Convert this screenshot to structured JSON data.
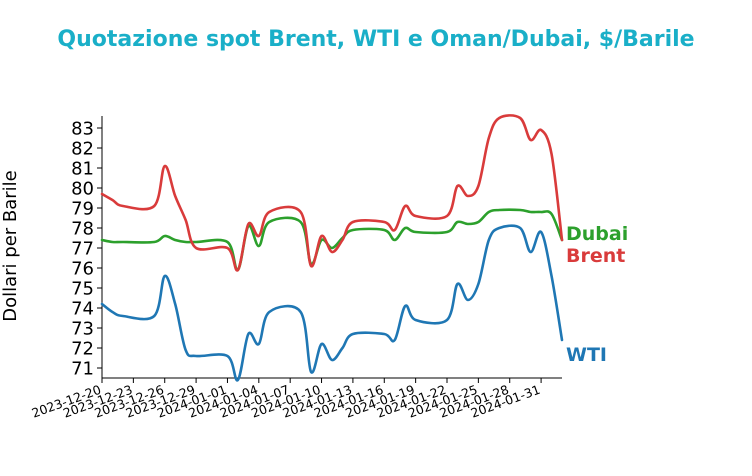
{
  "colors": {
    "title": "#1aafc8",
    "Brent": "#d93b3b",
    "Dubai": "#2ca02c",
    "WTI": "#1f77b4"
  },
  "chart_data": {
    "type": "line",
    "title": "Quotazione spot Brent, WTI e Oman/Dubai, $/Barile",
    "xlabel": "",
    "ylabel": "Dollari per Barile",
    "ylim": [
      70.5,
      83.6
    ],
    "yticks": [
      71,
      72,
      73,
      74,
      75,
      76,
      77,
      78,
      79,
      80,
      81,
      82,
      83
    ],
    "xlim": [
      "2023-12-20",
      "2024-02-02"
    ],
    "xticks": [
      "2023-12-20",
      "2023-12-23",
      "2023-12-26",
      "2023-12-29",
      "2024-01-01",
      "2024-01-04",
      "2024-01-07",
      "2024-01-10",
      "2024-01-13",
      "2024-01-16",
      "2024-01-19",
      "2024-01-22",
      "2024-01-25",
      "2024-01-28",
      "2024-01-31"
    ],
    "grid": false,
    "legend": "inline labels at right end of lines",
    "series": [
      {
        "name": "Dubai",
        "points": [
          [
            "2023-12-20",
            77.4
          ],
          [
            "2023-12-21",
            77.3
          ],
          [
            "2023-12-22",
            77.3
          ],
          [
            "2023-12-25",
            77.3
          ],
          [
            "2023-12-26",
            77.6
          ],
          [
            "2023-12-27",
            77.4
          ],
          [
            "2023-12-28",
            77.3
          ],
          [
            "2023-12-29",
            77.3
          ],
          [
            "2024-01-01",
            77.3
          ],
          [
            "2024-01-02",
            75.9
          ],
          [
            "2024-01-03",
            78.1
          ],
          [
            "2024-01-04",
            77.1
          ],
          [
            "2024-01-05",
            78.3
          ],
          [
            "2024-01-08",
            78.3
          ],
          [
            "2024-01-09",
            76.2
          ],
          [
            "2024-01-10",
            77.4
          ],
          [
            "2024-01-11",
            77.0
          ],
          [
            "2024-01-12",
            77.5
          ],
          [
            "2024-01-13",
            77.9
          ],
          [
            "2024-01-16",
            77.9
          ],
          [
            "2024-01-17",
            77.4
          ],
          [
            "2024-01-18",
            78.0
          ],
          [
            "2024-01-19",
            77.8
          ],
          [
            "2024-01-22",
            77.8
          ],
          [
            "2024-01-23",
            78.3
          ],
          [
            "2024-01-24",
            78.2
          ],
          [
            "2024-01-25",
            78.3
          ],
          [
            "2024-01-26",
            78.8
          ],
          [
            "2024-01-27",
            78.9
          ],
          [
            "2024-01-29",
            78.9
          ],
          [
            "2024-01-30",
            78.8
          ],
          [
            "2024-01-31",
            78.8
          ],
          [
            "2024-02-01",
            78.7
          ],
          [
            "2024-02-02",
            77.4
          ]
        ]
      },
      {
        "name": "Brent",
        "points": [
          [
            "2023-12-20",
            79.7
          ],
          [
            "2023-12-21",
            79.4
          ],
          [
            "2023-12-22",
            79.1
          ],
          [
            "2023-12-25",
            79.1
          ],
          [
            "2023-12-26",
            81.1
          ],
          [
            "2023-12-27",
            79.6
          ],
          [
            "2023-12-28",
            78.4
          ],
          [
            "2023-12-29",
            77.0
          ],
          [
            "2024-01-01",
            77.0
          ],
          [
            "2024-01-02",
            75.9
          ],
          [
            "2024-01-03",
            78.2
          ],
          [
            "2024-01-04",
            77.6
          ],
          [
            "2024-01-05",
            78.8
          ],
          [
            "2024-01-08",
            78.8
          ],
          [
            "2024-01-09",
            76.1
          ],
          [
            "2024-01-10",
            77.6
          ],
          [
            "2024-01-11",
            76.8
          ],
          [
            "2024-01-12",
            77.4
          ],
          [
            "2024-01-13",
            78.3
          ],
          [
            "2024-01-16",
            78.3
          ],
          [
            "2024-01-17",
            77.9
          ],
          [
            "2024-01-18",
            79.1
          ],
          [
            "2024-01-19",
            78.6
          ],
          [
            "2024-01-22",
            78.6
          ],
          [
            "2024-01-23",
            80.1
          ],
          [
            "2024-01-24",
            79.6
          ],
          [
            "2024-01-25",
            80.1
          ],
          [
            "2024-01-26",
            82.5
          ],
          [
            "2024-01-27",
            83.5
          ],
          [
            "2024-01-29",
            83.5
          ],
          [
            "2024-01-30",
            82.4
          ],
          [
            "2024-01-31",
            82.9
          ],
          [
            "2024-02-01",
            81.7
          ],
          [
            "2024-02-02",
            77.4
          ]
        ]
      },
      {
        "name": "WTI",
        "points": [
          [
            "2023-12-20",
            74.2
          ],
          [
            "2023-12-21",
            73.8
          ],
          [
            "2023-12-22",
            73.6
          ],
          [
            "2023-12-25",
            73.6
          ],
          [
            "2023-12-26",
            75.6
          ],
          [
            "2023-12-27",
            74.2
          ],
          [
            "2023-12-28",
            71.9
          ],
          [
            "2023-12-29",
            71.6
          ],
          [
            "2024-01-01",
            71.6
          ],
          [
            "2024-01-02",
            70.4
          ],
          [
            "2024-01-03",
            72.7
          ],
          [
            "2024-01-04",
            72.2
          ],
          [
            "2024-01-05",
            73.8
          ],
          [
            "2024-01-08",
            73.8
          ],
          [
            "2024-01-09",
            70.8
          ],
          [
            "2024-01-10",
            72.2
          ],
          [
            "2024-01-11",
            71.4
          ],
          [
            "2024-01-12",
            72.0
          ],
          [
            "2024-01-13",
            72.7
          ],
          [
            "2024-01-16",
            72.7
          ],
          [
            "2024-01-17",
            72.4
          ],
          [
            "2024-01-18",
            74.1
          ],
          [
            "2024-01-19",
            73.4
          ],
          [
            "2024-01-22",
            73.4
          ],
          [
            "2024-01-23",
            75.2
          ],
          [
            "2024-01-24",
            74.4
          ],
          [
            "2024-01-25",
            75.2
          ],
          [
            "2024-01-26",
            77.4
          ],
          [
            "2024-01-27",
            78.0
          ],
          [
            "2024-01-29",
            78.0
          ],
          [
            "2024-01-30",
            76.8
          ],
          [
            "2024-01-31",
            77.8
          ],
          [
            "2024-02-01",
            75.6
          ],
          [
            "2024-02-02",
            72.4
          ]
        ]
      }
    ]
  }
}
